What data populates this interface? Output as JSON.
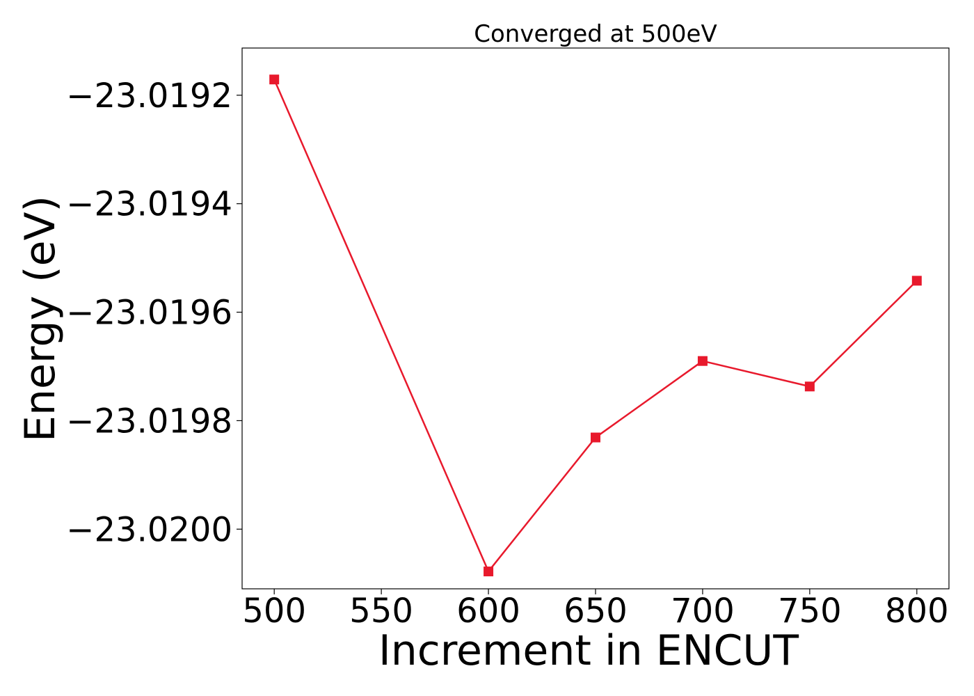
{
  "chart_data": {
    "type": "line",
    "title": "Converged at 500eV",
    "xlabel": "Increment in ENCUT",
    "ylabel": "Energy (eV)",
    "xlim": [
      485,
      815
    ],
    "ylim": [
      -23.02011,
      -23.019113
    ],
    "xticks": [
      500,
      550,
      600,
      650,
      700,
      750,
      800
    ],
    "xtick_labels": [
      "500",
      "550",
      "600",
      "650",
      "700",
      "750",
      "800"
    ],
    "yticks": [
      -23.0192,
      -23.0194,
      -23.0196,
      -23.0198,
      -23.02
    ],
    "ytick_labels": [
      "−23.0192",
      "−23.0194",
      "−23.0196",
      "−23.0198",
      "−23.0200"
    ],
    "grid": false,
    "series": [
      {
        "color": "#e8192c",
        "marker": "square",
        "x": [
          500,
          600,
          650,
          700,
          750,
          800
        ],
        "y": [
          -23.019171,
          -23.020078,
          -23.019831,
          -23.01969,
          -23.019737,
          -23.019542
        ]
      }
    ]
  }
}
